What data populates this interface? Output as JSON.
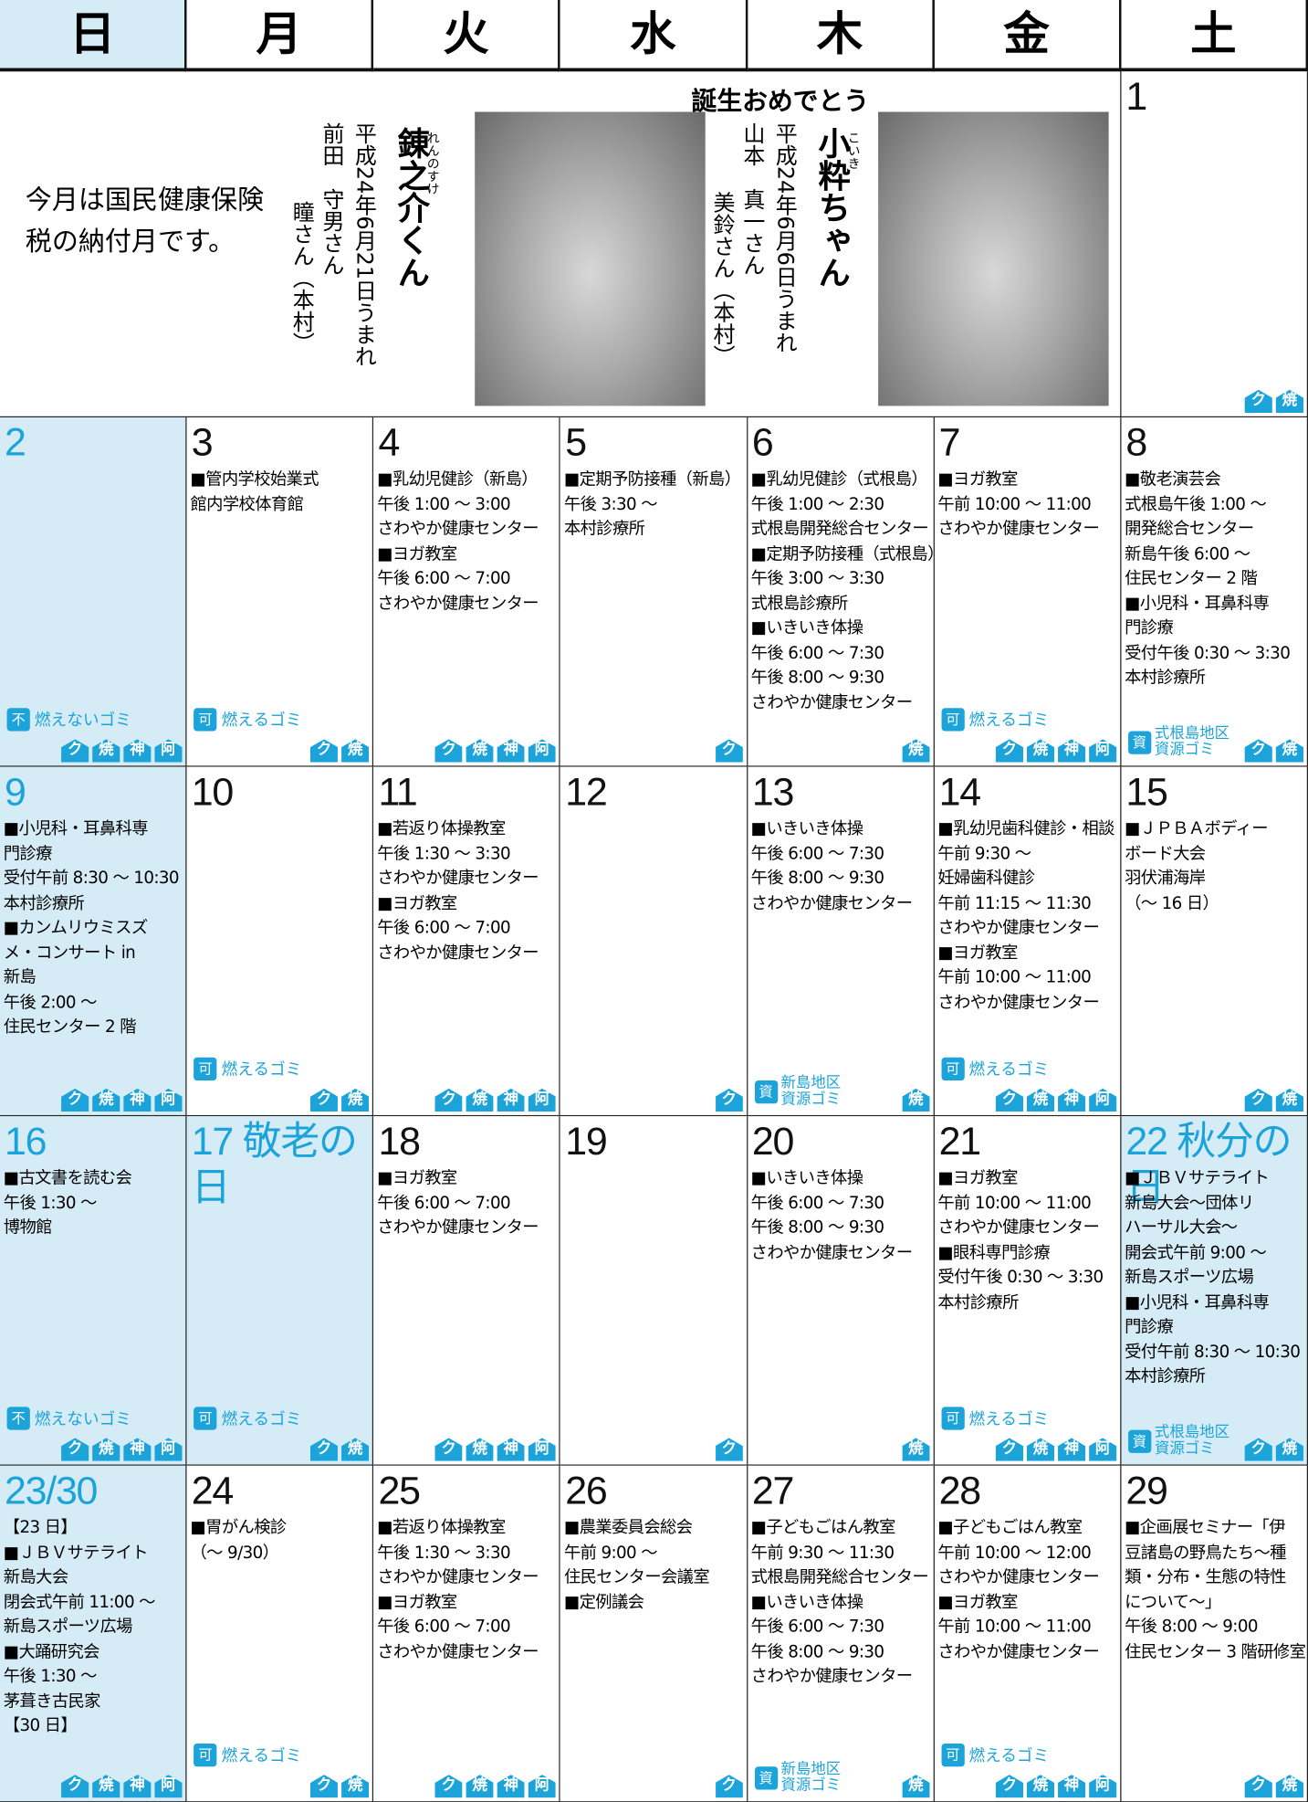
{
  "header": {
    "days": [
      "日",
      "月",
      "火",
      "水",
      "木",
      "金",
      "土"
    ]
  },
  "notice": {
    "lines": [
      "今月は国民健康保険",
      "税の納付月です。"
    ]
  },
  "birth": {
    "title": "誕生おめでとう",
    "babies": [
      {
        "ruby": "れんのすけ",
        "name": "錬之介くん",
        "date": "平成24年6月21日うまれ",
        "father": "前田　守男さん",
        "mother": "瞳さん（本村）"
      },
      {
        "ruby": "こいき",
        "name": "小粋ちゃん",
        "date": "平成24年6月6日うまれ",
        "father": "山本　真一さん",
        "mother": "美鈴さん（本村）"
      }
    ]
  },
  "cells": [
    {
      "day": "1",
      "lines": [],
      "icons": [
        "ク",
        "焼"
      ]
    },
    {
      "day": "2",
      "lines": [],
      "garbage": {
        "mark": "不",
        "label": "燃えないゴミ"
      },
      "icons": [
        "ク",
        "焼",
        "神",
        "阿"
      ]
    },
    {
      "day": "3",
      "lines": [
        "■管内学校始業式",
        "館内学校体育館"
      ],
      "garbage": {
        "mark": "可",
        "label": "燃えるゴミ"
      },
      "icons": [
        "ク",
        "焼"
      ]
    },
    {
      "day": "4",
      "lines": [
        "■乳幼児健診（新島）",
        "午後 1:00 ～ 3:00",
        "さわやか健康センター",
        "■ヨガ教室",
        "午後 6:00 ～ 7:00",
        "さわやか健康センター"
      ],
      "icons": [
        "ク",
        "焼",
        "神",
        "阿"
      ]
    },
    {
      "day": "5",
      "lines": [
        "■定期予防接種（新島）",
        "午後 3:30 ～",
        "本村診療所"
      ],
      "icons": [
        "ク"
      ]
    },
    {
      "day": "6",
      "lines": [
        "■乳幼児健診（式根島）",
        "午後 1:00 ～ 2:30",
        "式根島開発総合センター",
        "■定期予防接種（式根島）",
        "午後 3:00 ～ 3:30",
        "式根島診療所",
        "■いきいき体操",
        "午後 6:00 ～ 7:30",
        "午後 8:00 ～ 9:30",
        "さわやか健康センター"
      ],
      "icons": [
        "焼"
      ]
    },
    {
      "day": "7",
      "lines": [
        "■ヨガ教室",
        "午前 10:00 ～ 11:00",
        "さわやか健康センター"
      ],
      "garbage": {
        "mark": "可",
        "label": "燃えるゴミ"
      },
      "icons": [
        "ク",
        "焼",
        "神",
        "阿"
      ]
    },
    {
      "day": "8",
      "lines": [
        "■敬老演芸会",
        "式根島午後 1:00 ～",
        "開発総合センター",
        "新島午後 6:00 ～",
        "住民センター 2 階",
        "■小児科・耳鼻科専",
        "門診療",
        "受付午後 0:30 ～ 3:30",
        "本村診療所"
      ],
      "resource": {
        "mark": "資",
        "area": "式根島地区",
        "label": "資源ゴミ"
      },
      "icons": [
        "ク",
        "焼"
      ]
    },
    {
      "day": "9",
      "lines": [
        "■小児科・耳鼻科専",
        "門診療",
        "受付午前 8:30 ～ 10:30",
        "本村診療所",
        "■カンムリウミスズ",
        "メ・コンサート in",
        "新島",
        "午後 2:00 ～",
        "住民センター 2 階"
      ],
      "icons": [
        "ク",
        "焼",
        "神",
        "阿"
      ]
    },
    {
      "day": "10",
      "lines": [],
      "garbage": {
        "mark": "可",
        "label": "燃えるゴミ"
      },
      "icons": [
        "ク",
        "焼"
      ]
    },
    {
      "day": "11",
      "lines": [
        "■若返り体操教室",
        "午後 1:30 ～ 3:30",
        "さわやか健康センター",
        "■ヨガ教室",
        "午後 6:00 ～ 7:00",
        "さわやか健康センター"
      ],
      "icons": [
        "ク",
        "焼",
        "神",
        "阿"
      ]
    },
    {
      "day": "12",
      "lines": [],
      "icons": [
        "ク"
      ]
    },
    {
      "day": "13",
      "lines": [
        "■いきいき体操",
        "午後 6:00 ～ 7:30",
        "午後 8:00 ～ 9:30",
        "さわやか健康センター"
      ],
      "resource": {
        "mark": "資",
        "area": "新島地区",
        "label": "資源ゴミ"
      },
      "icons": [
        "焼"
      ]
    },
    {
      "day": "14",
      "lines": [
        "■乳幼児歯科健診・相談",
        "午前 9:30 ～",
        "妊婦歯科健診",
        "午前 11:15 ～ 11:30",
        "さわやか健康センター",
        "■ヨガ教室",
        "午前 10:00 ～ 11:00",
        "さわやか健康センター"
      ],
      "garbage": {
        "mark": "可",
        "label": "燃えるゴミ"
      },
      "icons": [
        "ク",
        "焼",
        "神",
        "阿"
      ]
    },
    {
      "day": "15",
      "lines": [
        "■ＪＰＢＡボディー",
        "ボード大会",
        "羽伏浦海岸",
        "（～ 16 日）"
      ],
      "icons": [
        "ク",
        "焼"
      ]
    },
    {
      "day": "16",
      "lines": [
        "■古文書を読む会",
        "午後 1:30 ～",
        "博物館"
      ],
      "garbage": {
        "mark": "不",
        "label": "燃えないゴミ"
      },
      "icons": [
        "ク",
        "焼",
        "神",
        "阿"
      ]
    },
    {
      "day": "17 敬老の日",
      "holiday": true,
      "lines": [],
      "garbage": {
        "mark": "可",
        "label": "燃えるゴミ"
      },
      "icons": [
        "ク",
        "焼"
      ]
    },
    {
      "day": "18",
      "lines": [
        "■ヨガ教室",
        "午後 6:00 ～ 7:00",
        "さわやか健康センター"
      ],
      "icons": [
        "ク",
        "焼",
        "神",
        "阿"
      ]
    },
    {
      "day": "19",
      "lines": [],
      "icons": [
        "ク"
      ]
    },
    {
      "day": "20",
      "lines": [
        "■いきいき体操",
        "午後 6:00 ～ 7:30",
        "午後 8:00 ～ 9:30",
        "さわやか健康センター"
      ],
      "icons": [
        "焼"
      ]
    },
    {
      "day": "21",
      "lines": [
        "■ヨガ教室",
        "午前 10:00 ～ 11:00",
        "さわやか健康センター",
        "■眼科専門診療",
        "受付午後 0:30 ～ 3:30",
        "本村診療所"
      ],
      "garbage": {
        "mark": "可",
        "label": "燃えるゴミ"
      },
      "icons": [
        "ク",
        "焼",
        "神",
        "阿"
      ]
    },
    {
      "day": "22 秋分の日",
      "holiday": true,
      "lines": [
        "■ＪＢＶサテライト",
        "新島大会～団体リ",
        "ハーサル大会～",
        "開会式午前 9:00 ～",
        "新島スポーツ広場",
        "■小児科・耳鼻科専",
        "門診療",
        "受付午前 8:30 ～ 10:30",
        "本村診療所"
      ],
      "resource": {
        "mark": "資",
        "area": "式根島地区",
        "label": "資源ゴミ"
      },
      "icons": [
        "ク",
        "焼"
      ]
    },
    {
      "day": "23/30",
      "lines": [
        "【23 日】",
        "■ＪＢＶサテライト",
        "新島大会",
        "閉会式午前 11:00 ～",
        "新島スポーツ広場",
        "■大踊研究会",
        "午後 1:30 ～",
        "茅葺き古民家",
        "【30 日】"
      ],
      "icons": [
        "ク",
        "焼",
        "神",
        "阿"
      ]
    },
    {
      "day": "24",
      "lines": [
        "■胃がん検診",
        "（～ 9/30）"
      ],
      "garbage": {
        "mark": "可",
        "label": "燃えるゴミ"
      },
      "icons": [
        "ク",
        "焼"
      ]
    },
    {
      "day": "25",
      "lines": [
        "■若返り体操教室",
        "午後 1:30 ～ 3:30",
        "さわやか健康センター",
        "■ヨガ教室",
        "午後 6:00 ～ 7:00",
        "さわやか健康センター"
      ],
      "icons": [
        "ク",
        "焼",
        "神",
        "阿"
      ]
    },
    {
      "day": "26",
      "lines": [
        "■農業委員会総会",
        "午前 9:00 ～",
        "住民センター会議室",
        "■定例議会"
      ],
      "icons": [
        "ク"
      ]
    },
    {
      "day": "27",
      "lines": [
        "■子どもごはん教室",
        "午前 9:30 ～ 11:30",
        "式根島開発総合センター",
        "■いきいき体操",
        "午後 6:00 ～ 7:30",
        "午後 8:00 ～ 9:30",
        "さわやか健康センター"
      ],
      "resource": {
        "mark": "資",
        "area": "新島地区",
        "label": "資源ゴミ"
      },
      "icons": [
        "焼"
      ]
    },
    {
      "day": "28",
      "lines": [
        "■子どもごはん教室",
        "午前 10:00 ～ 12:00",
        "さわやか健康センター",
        "■ヨガ教室",
        "午前 10:00 ～ 11:00",
        "さわやか健康センター"
      ],
      "garbage": {
        "mark": "可",
        "label": "燃えるゴミ"
      },
      "icons": [
        "ク",
        "焼",
        "神",
        "阿"
      ]
    },
    {
      "day": "29",
      "lines": [
        "■企画展セミナー「伊",
        "豆諸島の野鳥たち～種",
        "類・分布・生態の特性",
        "について～」",
        "午後 8:00 ～ 9:00",
        "住民センター 3 階研修室"
      ],
      "icons": [
        "ク",
        "焼"
      ]
    }
  ]
}
